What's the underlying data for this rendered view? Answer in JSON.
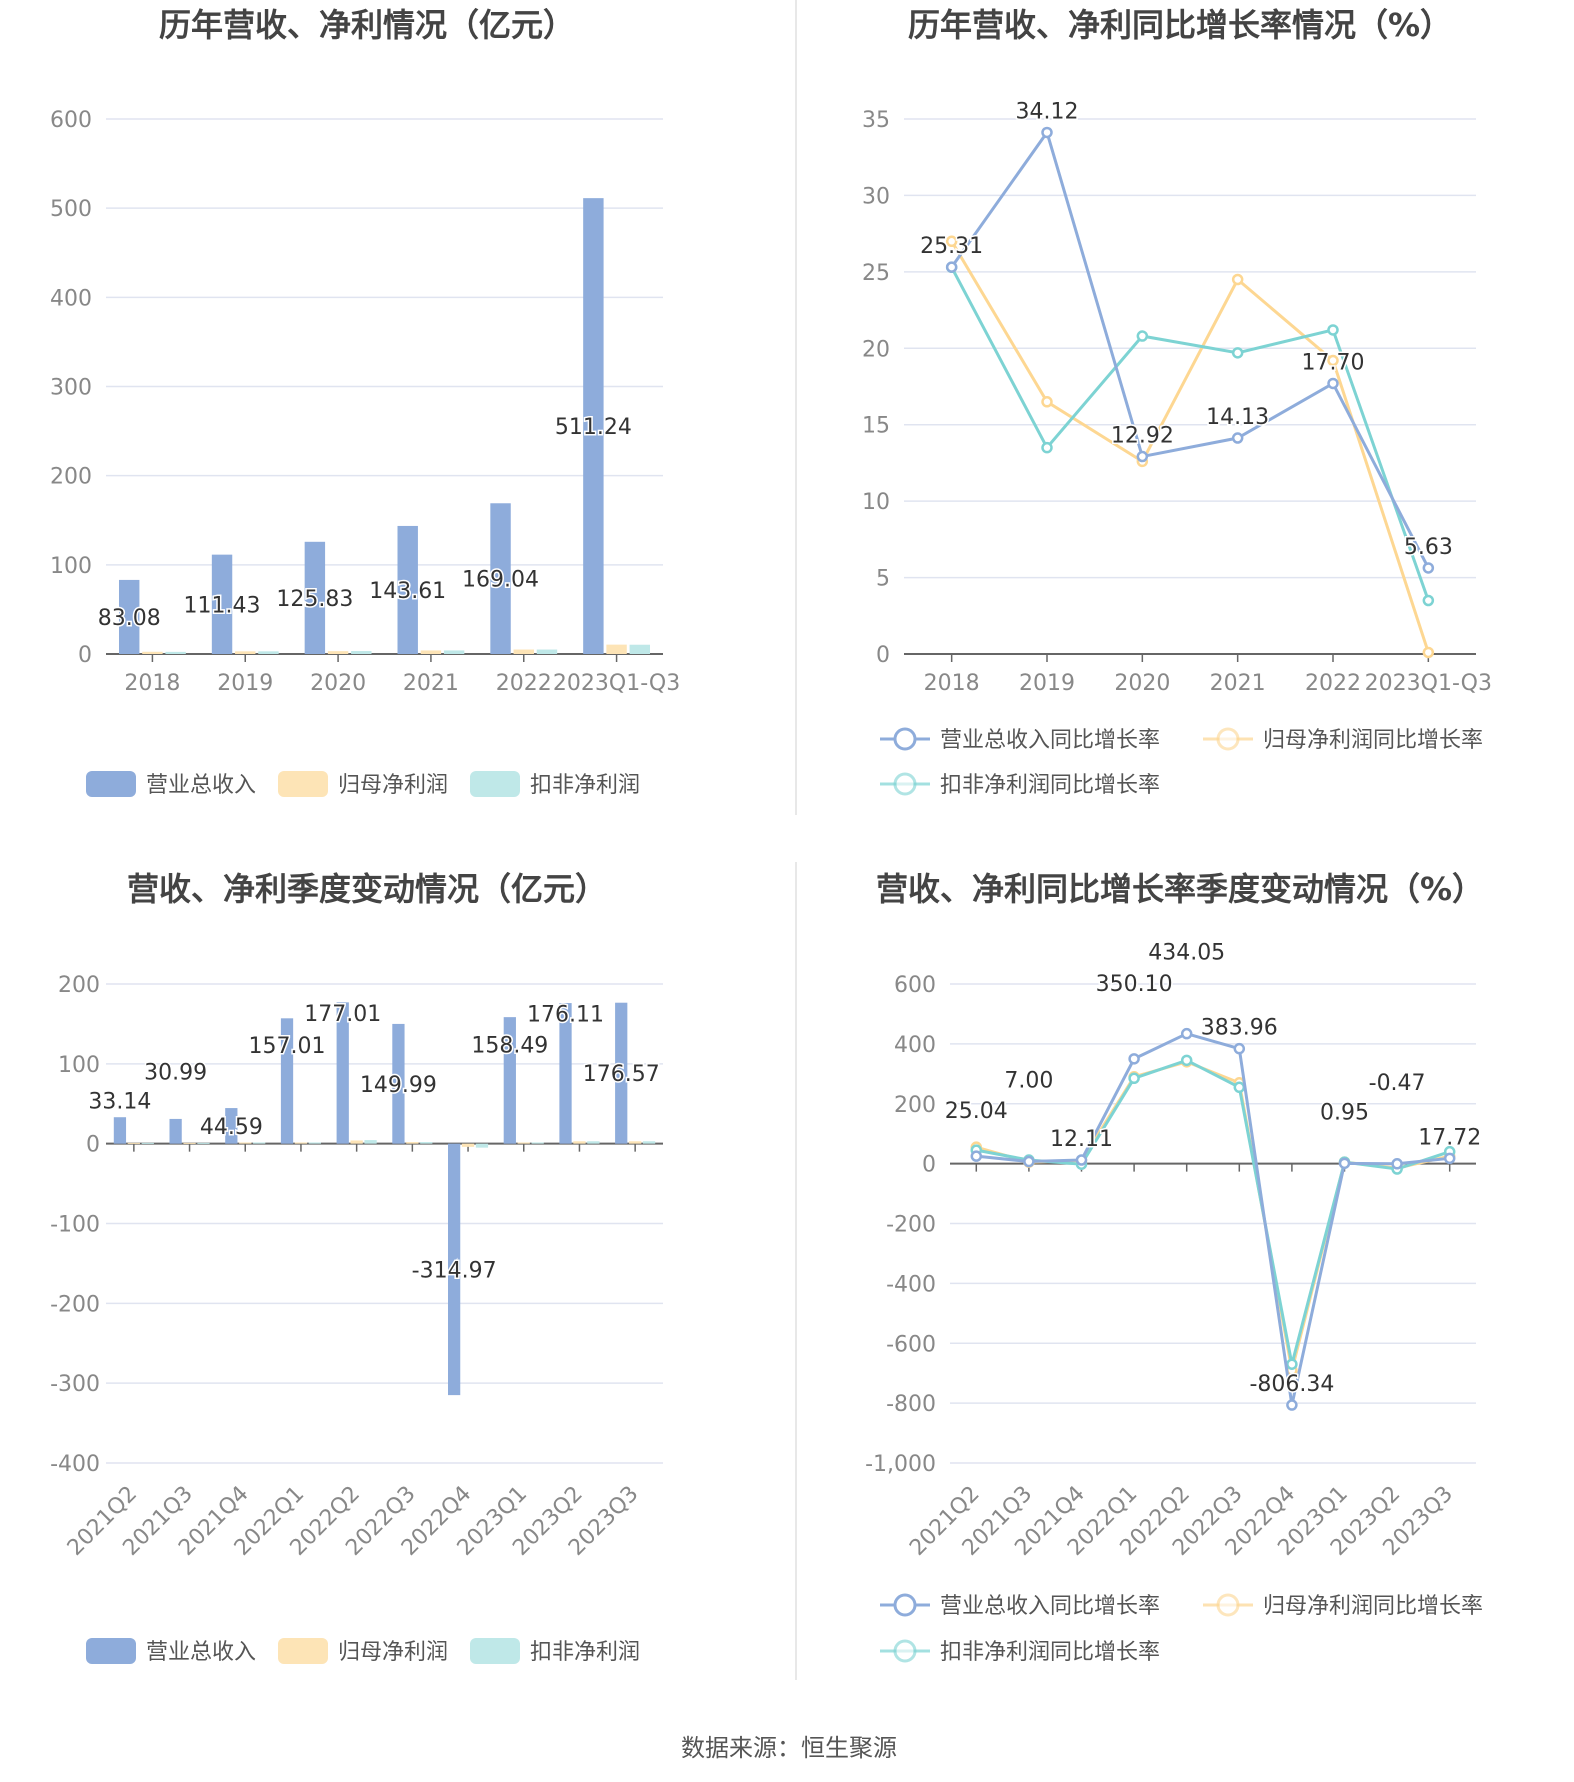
{
  "footer": "数据来源：恒生聚源",
  "colors": {
    "revenue": "#8eacdb",
    "net_profit": "#fde4b6",
    "deducted": "#bfe8e8",
    "net_line": "#fdd792",
    "ded_line": "#7dd3d3",
    "grid": "#e0e4f0"
  },
  "chart_data": [
    {
      "type": "bar",
      "title": "历年营收、净利情况（亿元）",
      "categories": [
        "2018",
        "2019",
        "2020",
        "2021",
        "2022",
        "2023Q1-Q3"
      ],
      "ylim": [
        0,
        600
      ],
      "yticks": [
        0,
        100,
        200,
        300,
        400,
        500,
        600
      ],
      "grid": true,
      "legend": "bottom",
      "series": [
        {
          "name": "营业总收入",
          "values": [
            83.08,
            111.43,
            125.83,
            143.61,
            169.04,
            511.24
          ],
          "labels": [
            "83.08",
            "111.43",
            "125.83",
            "143.61",
            "169.04",
            "511.24"
          ]
        },
        {
          "name": "归母净利润",
          "values": [
            2.5,
            3,
            3.2,
            4,
            5,
            10.5
          ]
        },
        {
          "name": "扣非净利润",
          "values": [
            2.4,
            3,
            3.3,
            4,
            5,
            10.4
          ]
        }
      ]
    },
    {
      "type": "line",
      "title": "历年营收、净利同比增长率情况（%）",
      "categories": [
        "2018",
        "2019",
        "2020",
        "2021",
        "2022",
        "2023Q1-Q3"
      ],
      "ylim": [
        0,
        35
      ],
      "yticks": [
        0,
        5,
        10,
        15,
        20,
        25,
        30,
        35
      ],
      "grid": true,
      "legend": "bottom",
      "series": [
        {
          "name": "营业总收入同比增长率",
          "values": [
            25.31,
            34.12,
            12.92,
            14.13,
            17.7,
            5.63
          ],
          "labels": [
            "25.31",
            "34.12",
            "12.92",
            "14.13",
            "17.70",
            "5.63"
          ]
        },
        {
          "name": "归母净利润同比增长率",
          "values": [
            27,
            16.5,
            12.6,
            24.5,
            19.2,
            0.1
          ]
        },
        {
          "name": "扣非净利润同比增长率",
          "values": [
            25.3,
            13.5,
            20.8,
            19.7,
            21.2,
            3.5
          ]
        }
      ]
    },
    {
      "type": "bar",
      "title": "营收、净利季度变动情况（亿元）",
      "categories": [
        "2021Q2",
        "2021Q3",
        "2021Q4",
        "2022Q1",
        "2022Q2",
        "2022Q3",
        "2022Q4",
        "2023Q1",
        "2023Q2",
        "2023Q3"
      ],
      "ylim": [
        -400,
        200
      ],
      "yticks": [
        -400,
        -300,
        -200,
        -100,
        0,
        100,
        200
      ],
      "grid": true,
      "legend": "bottom",
      "series": [
        {
          "name": "营业总收入",
          "values": [
            33.14,
            30.99,
            44.59,
            157.01,
            177.01,
            149.99,
            -314.97,
            158.49,
            176.11,
            176.57
          ],
          "labels": [
            "33.14",
            "30.99",
            "44.59",
            "157.01",
            "177.01",
            "149.99",
            "-314.97",
            "158.49",
            "176.11",
            "176.57"
          ]
        },
        {
          "name": "归母净利润",
          "values": [
            1,
            1,
            1.5,
            1.5,
            4,
            2,
            -4,
            1.5,
            3,
            3
          ]
        },
        {
          "name": "扣非净利润",
          "values": [
            1,
            1,
            1.5,
            1.5,
            4.5,
            2,
            -5,
            1.5,
            3,
            3
          ]
        }
      ]
    },
    {
      "type": "line",
      "title": "营收、净利同比增长率季度变动情况（%）",
      "categories": [
        "2021Q2",
        "2021Q3",
        "2021Q4",
        "2022Q1",
        "2022Q2",
        "2022Q3",
        "2022Q4",
        "2023Q1",
        "2023Q2",
        "2023Q3"
      ],
      "ylim": [
        -1000,
        600
      ],
      "yticks": [
        -1000,
        -800,
        -600,
        -400,
        -200,
        0,
        200,
        400,
        600
      ],
      "ytick_labels": [
        "-1,000",
        "-800",
        "-600",
        "-400",
        "-200",
        "0",
        "200",
        "400",
        "600"
      ],
      "grid": true,
      "legend": "bottom",
      "series": [
        {
          "name": "营业总收入同比增长率",
          "values": [
            25.04,
            7.0,
            12.11,
            350.1,
            434.05,
            383.96,
            -806.34,
            0.95,
            -0.47,
            17.72
          ],
          "labels": [
            "25.04",
            "7.00",
            "12.11",
            "350.10",
            "434.05",
            "383.96",
            "-806.34",
            "0.95",
            "-0.47",
            "17.72"
          ]
        },
        {
          "name": "归母净利润同比增长率",
          "values": [
            55,
            5,
            10,
            290,
            340,
            270,
            -690,
            5,
            -15,
            25
          ]
        },
        {
          "name": "扣非净利润同比增长率",
          "values": [
            45,
            12,
            -2,
            285,
            345,
            255,
            -670,
            5,
            -18,
            40
          ]
        }
      ]
    }
  ]
}
